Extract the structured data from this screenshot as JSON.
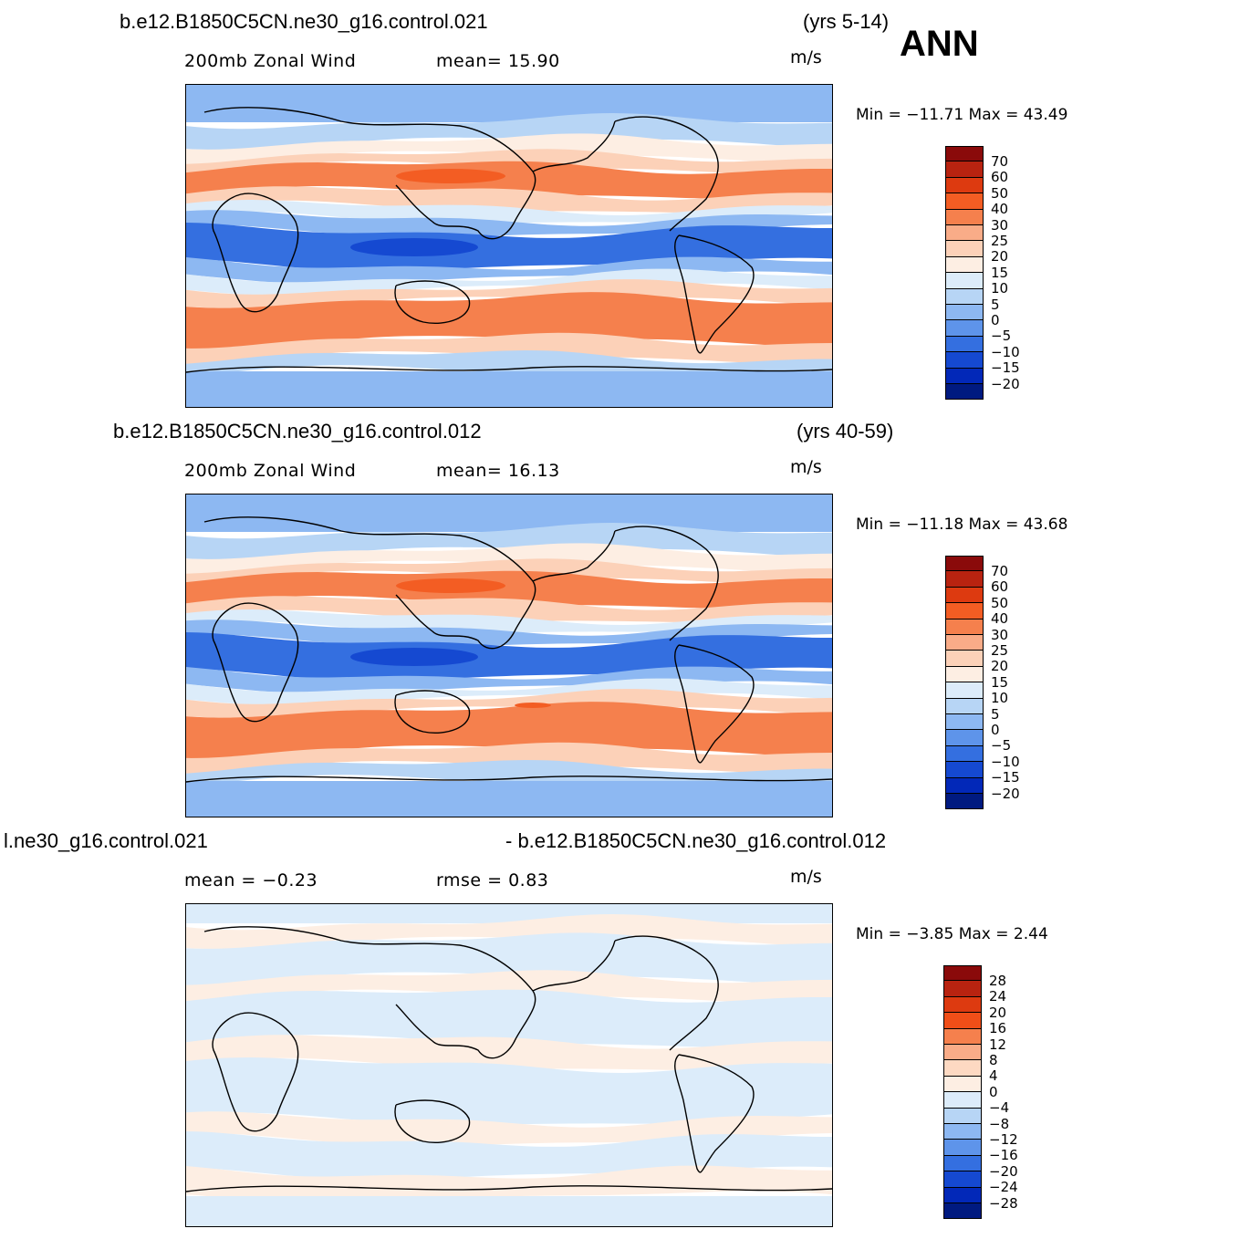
{
  "season": "ANN",
  "panels": [
    {
      "case_title": "b.e12.B1850C5CN.ne30_g16.control.021",
      "years": "(yrs 5-14)",
      "left_sub": "200mb  Zonal Wind",
      "mid_sub": "mean=   15.90",
      "units": "m/s",
      "minmax": "Min  =  −11.71  Max  =    43.49",
      "legend": {
        "labels": [
          "70",
          "60",
          "50",
          "40",
          "30",
          "25",
          "20",
          "15",
          "10",
          "5",
          "0",
          "−5",
          "−10",
          "−15",
          "−20"
        ],
        "colors": [
          "#8a0a0a",
          "#b82310",
          "#dd3a10",
          "#f35d23",
          "#f5804d",
          "#f9ac88",
          "#fcd1b8",
          "#fdeee3",
          "#dcecfa",
          "#b7d5f5",
          "#8db8f2",
          "#5e94ea",
          "#346fe0",
          "#1549d1",
          "#0228b8",
          "#001a80"
        ]
      },
      "field_type": "mean"
    },
    {
      "case_title": "b.e12.B1850C5CN.ne30_g16.control.012",
      "years": "(yrs 40-59)",
      "left_sub": "200mb  Zonal Wind",
      "mid_sub": "mean=   16.13",
      "units": "m/s",
      "minmax": "Min  =  −11.18  Max  =    43.68",
      "legend": {
        "labels": [
          "70",
          "60",
          "50",
          "40",
          "30",
          "25",
          "20",
          "15",
          "10",
          "5",
          "0",
          "−5",
          "−10",
          "−15",
          "−20"
        ],
        "colors": [
          "#8a0a0a",
          "#b82310",
          "#dd3a10",
          "#f35d23",
          "#f5804d",
          "#f9ac88",
          "#fcd1b8",
          "#fdeee3",
          "#dcecfa",
          "#b7d5f5",
          "#8db8f2",
          "#5e94ea",
          "#346fe0",
          "#1549d1",
          "#0228b8",
          "#001a80"
        ]
      },
      "field_type": "mean"
    },
    {
      "case_title_left": "l.ne30_g16.control.021",
      "case_title_right": "- b.e12.B1850C5CN.ne30_g16.control.012",
      "left_sub": "mean  =    −0.23",
      "mid_sub": "rmse  =     0.83",
      "units": "m/s",
      "minmax": "Min  =    −3.85  Max  =      2.44",
      "legend": {
        "labels": [
          "28",
          "24",
          "20",
          "16",
          "12",
          "8",
          "4",
          "0",
          "−4",
          "−8",
          "−12",
          "−16",
          "−20",
          "−24",
          "−28"
        ],
        "colors": [
          "#8a0a0a",
          "#b82310",
          "#dd3a10",
          "#f04e18",
          "#f5804d",
          "#f9ac88",
          "#fdd9c2",
          "#fdeee3",
          "#dcecfa",
          "#b7d5f5",
          "#8db8f2",
          "#5e94ea",
          "#346fe0",
          "#1549d1",
          "#0228b8",
          "#001a80"
        ]
      },
      "field_type": "diff"
    }
  ]
}
